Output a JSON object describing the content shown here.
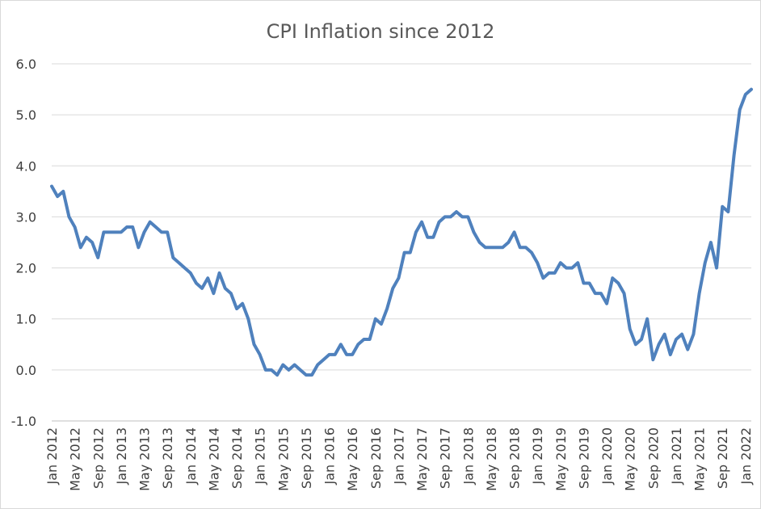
{
  "chart_data": {
    "type": "line",
    "title": "CPI Inflation since 2012",
    "xlabel": "",
    "ylabel": "",
    "ylim": [
      -1.0,
      6.0
    ],
    "yticks": [
      "-1.0",
      "0.0",
      "1.0",
      "2.0",
      "3.0",
      "4.0",
      "5.0",
      "6.0"
    ],
    "grid": true,
    "legend": "none",
    "line_color": "#4f81bd",
    "x_tick_labels": [
      "Jan 2012",
      "May 2012",
      "Sep 2012",
      "Jan 2013",
      "May 2013",
      "Sep 2013",
      "Jan 2014",
      "May 2014",
      "Sep 2014",
      "Jan 2015",
      "May 2015",
      "Sep 2015",
      "Jan 2016",
      "May 2016",
      "Sep 2016",
      "Jan 2017",
      "May 2017",
      "Sep 2017",
      "Jan 2018",
      "May 2018",
      "Sep 2018",
      "Jan 2019",
      "May 2019",
      "Sep 2019",
      "Jan 2020",
      "May 2020",
      "Sep 2020",
      "Jan 2021",
      "May 2021",
      "Sep 2021",
      "Jan 2022"
    ],
    "series": [
      {
        "values": [
          3.6,
          3.4,
          3.5,
          3.0,
          2.8,
          2.4,
          2.6,
          2.5,
          2.2,
          2.7,
          2.7,
          2.7,
          2.7,
          2.8,
          2.8,
          2.4,
          2.7,
          2.9,
          2.8,
          2.7,
          2.7,
          2.2,
          2.1,
          2.0,
          1.9,
          1.7,
          1.6,
          1.8,
          1.5,
          1.9,
          1.6,
          1.5,
          1.2,
          1.3,
          1.0,
          0.5,
          0.3,
          0.0,
          0.0,
          -0.1,
          0.1,
          0.0,
          0.1,
          0.0,
          -0.1,
          -0.1,
          0.1,
          0.2,
          0.3,
          0.3,
          0.5,
          0.3,
          0.3,
          0.5,
          0.6,
          0.6,
          1.0,
          0.9,
          1.2,
          1.6,
          1.8,
          2.3,
          2.3,
          2.7,
          2.9,
          2.6,
          2.6,
          2.9,
          3.0,
          3.0,
          3.1,
          3.0,
          3.0,
          2.7,
          2.5,
          2.4,
          2.4,
          2.4,
          2.4,
          2.5,
          2.7,
          2.4,
          2.4,
          2.3,
          2.1,
          1.8,
          1.9,
          1.9,
          2.1,
          2.0,
          2.0,
          2.1,
          1.7,
          1.7,
          1.5,
          1.5,
          1.3,
          1.8,
          1.7,
          1.5,
          0.8,
          0.5,
          0.6,
          1.0,
          0.2,
          0.5,
          0.7,
          0.3,
          0.6,
          0.7,
          0.4,
          0.7,
          1.5,
          2.1,
          2.5,
          2.0,
          3.2,
          3.1,
          4.2,
          5.1,
          5.4,
          5.5
        ]
      }
    ]
  }
}
